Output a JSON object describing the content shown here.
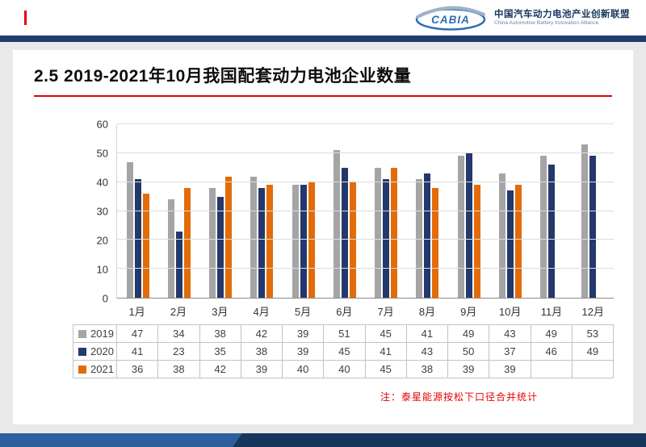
{
  "header": {
    "logo_text": "CABIA",
    "org_name_cn": "中国汽车动力电池产业创新联盟",
    "org_name_en": "China Automotive Battery Innovation Alliance"
  },
  "slide": {
    "title": "2.5 2019-2021年10月我国配套动力电池企业数量",
    "note": "注：泰星能源按松下口径合并统计"
  },
  "colors": {
    "accent_red": "#e60000",
    "navy_band": "#1f3c6d",
    "bar_2019": "#a5a5a5",
    "bar_2020": "#24396b",
    "bar_2021": "#e36c09"
  },
  "chart_data": {
    "type": "bar",
    "title": "2019-2021年10月我国配套动力电池企业数量",
    "categories": [
      "1月",
      "2月",
      "3月",
      "4月",
      "5月",
      "6月",
      "7月",
      "8月",
      "9月",
      "10月",
      "11月",
      "12月"
    ],
    "series": [
      {
        "name": "2019",
        "color": "#a5a5a5",
        "values": [
          47,
          34,
          38,
          42,
          39,
          51,
          45,
          41,
          49,
          43,
          49,
          53
        ]
      },
      {
        "name": "2020",
        "color": "#24396b",
        "values": [
          41,
          23,
          35,
          38,
          39,
          45,
          41,
          43,
          50,
          37,
          46,
          49
        ]
      },
      {
        "name": "2021",
        "color": "#e36c09",
        "values": [
          36,
          38,
          42,
          39,
          40,
          40,
          45,
          38,
          39,
          39,
          null,
          null
        ]
      }
    ],
    "xlabel": "",
    "ylabel": "",
    "ylim": [
      0,
      60
    ],
    "yticks": [
      0,
      10,
      20,
      30,
      40,
      50,
      60
    ],
    "grid": true,
    "legend_position": "table-left-column"
  }
}
